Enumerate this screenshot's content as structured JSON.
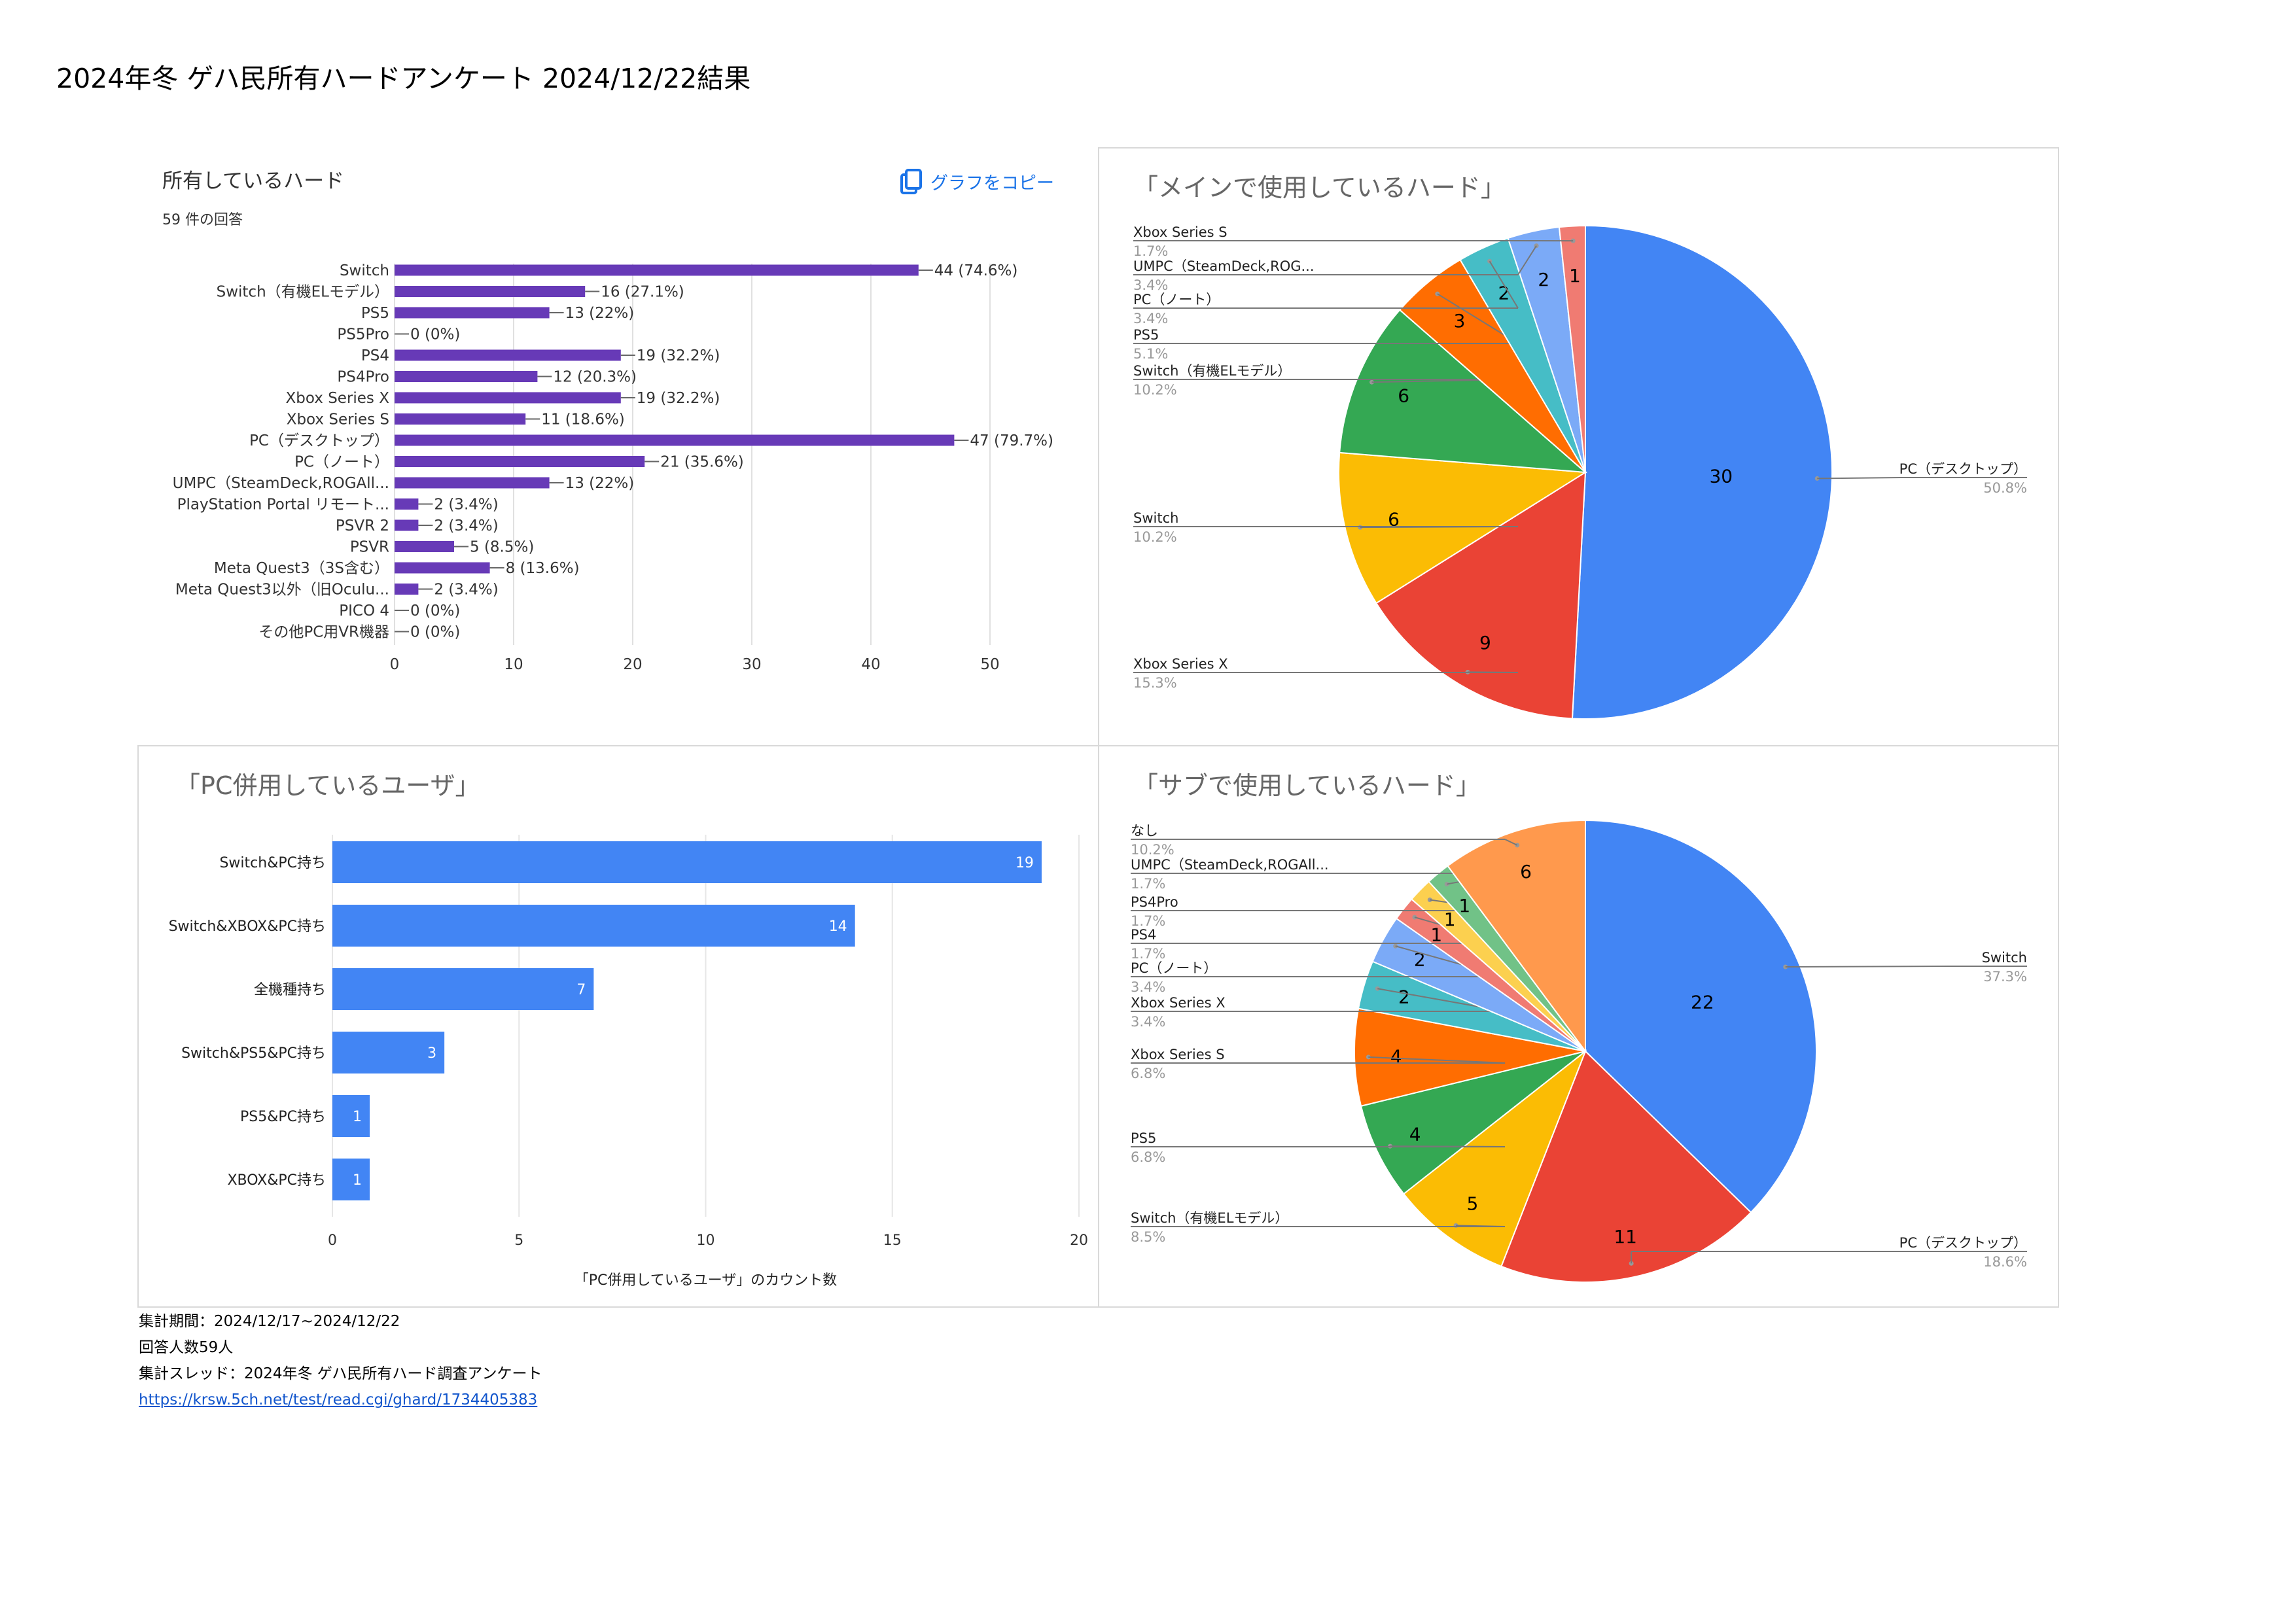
{
  "page": {
    "title": "2024年冬 ゲハ民所有ハードアンケート 2024/12/22結果"
  },
  "chart_data": [
    {
      "id": "owned",
      "type": "bar",
      "orientation": "horizontal",
      "title": "所有しているハード",
      "subtitle": "59 件の回答",
      "copy_label": "グラフをコピー",
      "color": "#673ab7",
      "categories": [
        "Switch",
        "Switch（有機ELモデル）",
        "PS5",
        "PS5Pro",
        "PS4",
        "PS4Pro",
        "Xbox Series X",
        "Xbox Series S",
        "PC（デスクトップ）",
        "PC（ノート）",
        "UMPC（SteamDeck,ROGAll...",
        "PlayStation Portal リモート...",
        "PSVR 2",
        "PSVR",
        "Meta Quest3（3S含む）",
        "Meta Quest3以外（旧Oculu...",
        "PICO 4",
        "その他PC用VR機器"
      ],
      "values": [
        44,
        16,
        13,
        0,
        19,
        12,
        19,
        11,
        47,
        21,
        13,
        2,
        2,
        5,
        8,
        2,
        0,
        0
      ],
      "value_labels": [
        "44 (74.6%)",
        "16 (27.1%)",
        "13 (22%)",
        "0 (0%)",
        "19 (32.2%)",
        "12 (20.3%)",
        "19 (32.2%)",
        "11 (18.6%)",
        "47 (79.7%)",
        "21 (35.6%)",
        "13 (22%)",
        "2 (3.4%)",
        "2 (3.4%)",
        "5 (8.5%)",
        "8 (13.6%)",
        "2 (3.4%)",
        "0 (0%)",
        "0 (0%)"
      ],
      "xlim": [
        0,
        50
      ],
      "xticks": [
        "0",
        "10",
        "20",
        "30",
        "40",
        "50"
      ],
      "grid": true
    },
    {
      "id": "main",
      "type": "pie",
      "title": "「メインで使用しているハード」",
      "slices": [
        {
          "label": "PC（デスクトップ）",
          "value": 30,
          "percent": "50.8%",
          "color": "#4285f4"
        },
        {
          "label": "Xbox Series X",
          "value": 9,
          "percent": "15.3%",
          "color": "#ea4335"
        },
        {
          "label": "Switch",
          "value": 6,
          "percent": "10.2%",
          "color": "#fbbc04"
        },
        {
          "label": "Switch（有機ELモデル）",
          "value": 6,
          "percent": "10.2%",
          "color": "#34a853"
        },
        {
          "label": "PS5",
          "value": 3,
          "percent": "5.1%",
          "color": "#ff6d01"
        },
        {
          "label": "PC（ノート）",
          "value": 2,
          "percent": "3.4%",
          "color": "#46bdc6"
        },
        {
          "label": "UMPC（SteamDeck,ROG...",
          "value": 2,
          "percent": "3.4%",
          "color": "#7baaf7"
        },
        {
          "label": "Xbox Series S",
          "value": 1,
          "percent": "1.7%",
          "color": "#f07b72"
        }
      ]
    },
    {
      "id": "pc-combo",
      "type": "bar",
      "orientation": "horizontal",
      "title": "「PC併用しているユーザ」",
      "xlabel": "「PC併用しているユーザ」のカウント数",
      "color": "#4285f4",
      "categories": [
        "Switch&PC持ち",
        "Switch&XBOX&PC持ち",
        "全機種持ち",
        "Switch&PS5&PC持ち",
        "PS5&PC持ち",
        "XBOX&PC持ち"
      ],
      "values": [
        19,
        14,
        7,
        3,
        1,
        1
      ],
      "value_labels": [
        "19",
        "14",
        "7",
        "3",
        "1",
        "1"
      ],
      "xlim": [
        0,
        20
      ],
      "xticks": [
        "0",
        "5",
        "10",
        "15",
        "20"
      ],
      "grid": true
    },
    {
      "id": "sub",
      "type": "pie",
      "title": "「サブで使用しているハード」",
      "slices": [
        {
          "label": "Switch",
          "value": 22,
          "percent": "37.3%",
          "color": "#4285f4"
        },
        {
          "label": "PC（デスクトップ）",
          "value": 11,
          "percent": "18.6%",
          "color": "#ea4335"
        },
        {
          "label": "Switch（有機ELモデル）",
          "value": 5,
          "percent": "8.5%",
          "color": "#fbbc04"
        },
        {
          "label": "PS5",
          "value": 4,
          "percent": "6.8%",
          "color": "#34a853"
        },
        {
          "label": "Xbox Series S",
          "value": 4,
          "percent": "6.8%",
          "color": "#ff6d01"
        },
        {
          "label": "Xbox Series X",
          "value": 2,
          "percent": "3.4%",
          "color": "#46bdc6"
        },
        {
          "label": "PC（ノート）",
          "value": 2,
          "percent": "3.4%",
          "color": "#7baaf7"
        },
        {
          "label": "PS4",
          "value": 1,
          "percent": "1.7%",
          "color": "#f07b72"
        },
        {
          "label": "PS4Pro",
          "value": 1,
          "percent": "1.7%",
          "color": "#fcd04f"
        },
        {
          "label": "UMPC（SteamDeck,ROGAll...",
          "value": 1,
          "percent": "1.7%",
          "color": "#71c287"
        },
        {
          "label": "なし",
          "value": 6,
          "percent": "10.2%",
          "color": "#ff994d"
        }
      ]
    }
  ],
  "footer": {
    "period": "集計期間：2024/12/17~2024/12/22",
    "respondents": "回答人数59人",
    "thread": "集計スレッド：2024年冬 ゲハ民所有ハード調査アンケート",
    "link": "https://krsw.5ch.net/test/read.cgi/ghard/1734405383"
  }
}
